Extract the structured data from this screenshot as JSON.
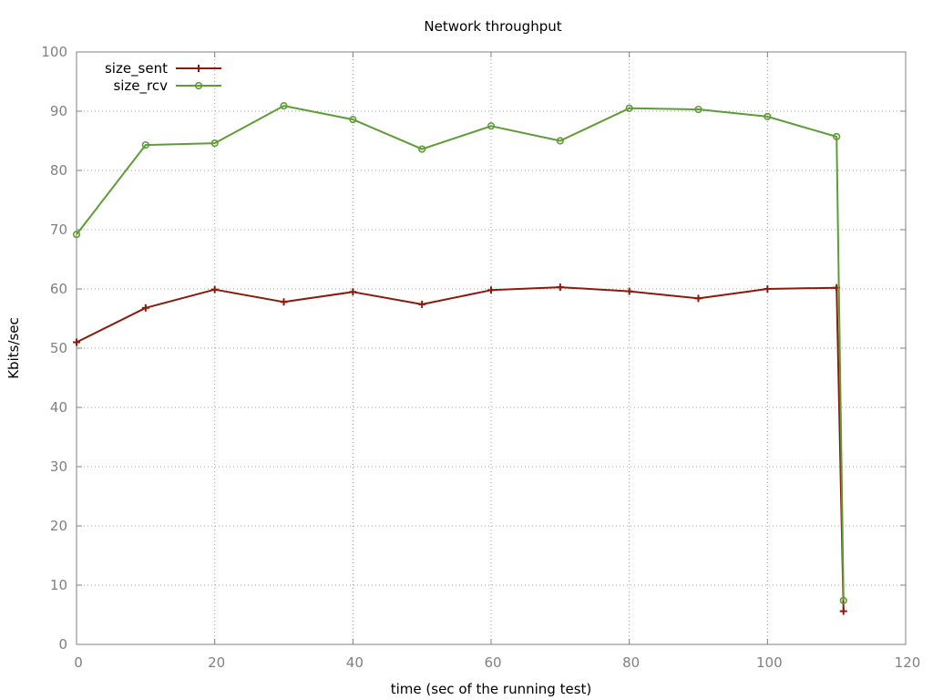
{
  "chart_data": {
    "type": "line",
    "title": "Network throughput",
    "xlabel": "time (sec of the running test)",
    "ylabel": "Kbits/sec",
    "xlim": [
      0,
      120
    ],
    "ylim": [
      0,
      100
    ],
    "xticks": [
      0,
      20,
      40,
      60,
      80,
      100,
      120
    ],
    "yticks": [
      0,
      10,
      20,
      30,
      40,
      50,
      60,
      70,
      80,
      90,
      100
    ],
    "grid": true,
    "legend_position": "top-left",
    "series": [
      {
        "name": "size_sent",
        "color": "#8b1a0e",
        "marker": "plus",
        "x": [
          0,
          10,
          20,
          30,
          40,
          50,
          60,
          70,
          80,
          90,
          100,
          110,
          111
        ],
        "y": [
          51.0,
          56.8,
          59.9,
          57.8,
          59.5,
          57.4,
          59.8,
          60.3,
          59.6,
          58.4,
          60.0,
          60.2,
          5.6
        ]
      },
      {
        "name": "size_rcv",
        "color": "#5e9c36",
        "marker": "circle",
        "x": [
          0,
          10,
          20,
          30,
          40,
          50,
          60,
          70,
          80,
          90,
          100,
          110,
          111
        ],
        "y": [
          69.2,
          84.3,
          84.6,
          90.9,
          88.6,
          83.6,
          87.5,
          85.0,
          90.5,
          90.3,
          89.1,
          85.7,
          7.4
        ]
      }
    ]
  }
}
